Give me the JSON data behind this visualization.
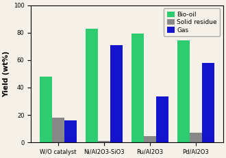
{
  "categories": [
    "W/O catalyst",
    "Ni/Al2O3-SiO3",
    "Ru/Al2O3",
    "Pd/Al2O3"
  ],
  "xticklabels": [
    "W/O catalyst",
    "Ni/Al2O3-SiO3",
    "Ru/Al2O3",
    "Pd/Al2O3"
  ],
  "bio_oil": [
    48,
    83,
    79.5,
    74.5
  ],
  "solid_residue": [
    18,
    1,
    4.5,
    7
  ],
  "gas": [
    16,
    71,
    33.5,
    58
  ],
  "bio_oil_color": "#2ecc71",
  "solid_residue_color": "#888888",
  "gas_color": "#1414cc",
  "bg_color": "#f5f0e8",
  "ylabel": "Yield (wt%)",
  "ylim": [
    0,
    100
  ],
  "yticks": [
    0,
    20,
    40,
    60,
    80,
    100
  ],
  "legend_labels": [
    "Bio-oil",
    "Solid residue",
    "Gas"
  ],
  "bar_width": 0.27,
  "figsize": [
    3.3,
    2.31
  ],
  "dpi": 100,
  "tick_fontsize": 6,
  "legend_fontsize": 6.5,
  "ylabel_fontsize": 7.5
}
